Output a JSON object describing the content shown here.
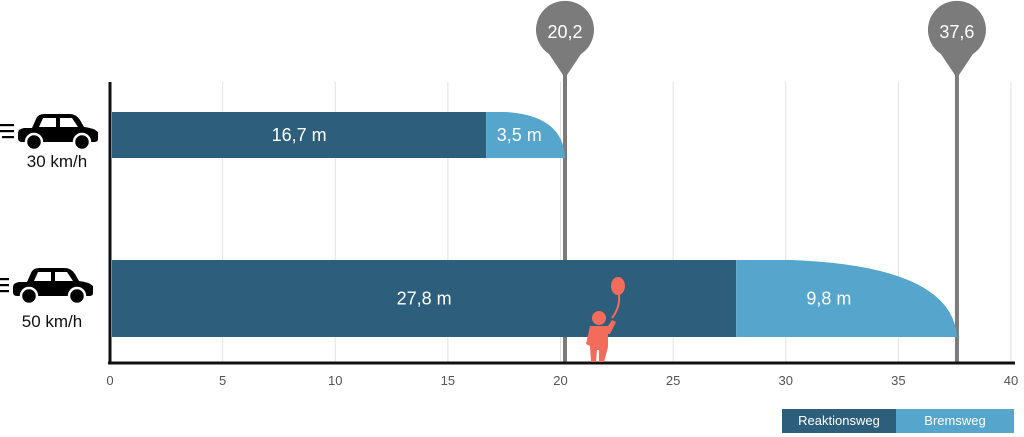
{
  "chart_data": {
    "type": "bar",
    "orientation": "horizontal",
    "stacked": true,
    "xlim": [
      0,
      40
    ],
    "xticks": [
      0,
      5,
      10,
      15,
      20,
      25,
      30,
      35,
      40
    ],
    "grid": true,
    "legend_position": "bottom-right",
    "categories": [
      "30 km/h",
      "50 km/h"
    ],
    "series": [
      {
        "name": "Reaktionsweg",
        "values": [
          16.7,
          27.8
        ],
        "labels": [
          "16,7 m",
          "27,8 m"
        ],
        "color": "#2d5f7c"
      },
      {
        "name": "Bremsweg",
        "values": [
          3.5,
          9.8
        ],
        "labels": [
          "3,5 m",
          "9,8 m"
        ],
        "color": "#55a5cd"
      }
    ],
    "stop_markers": [
      {
        "value": 20.2,
        "label": "20,2"
      },
      {
        "value": 37.6,
        "label": "37,6"
      }
    ],
    "icons": [
      "car-icon",
      "car-icon",
      "child-with-balloon-icon"
    ]
  },
  "legend": {
    "reaction_label": "Reaktionsweg",
    "braking_label": "Bremsweg"
  },
  "colors": {
    "reaction": "#2d5f7c",
    "braking": "#55a5cd",
    "marker": "#7b7b7b",
    "child": "#f26b5b",
    "axis": "#111111",
    "grid": "#e2e2e2"
  }
}
